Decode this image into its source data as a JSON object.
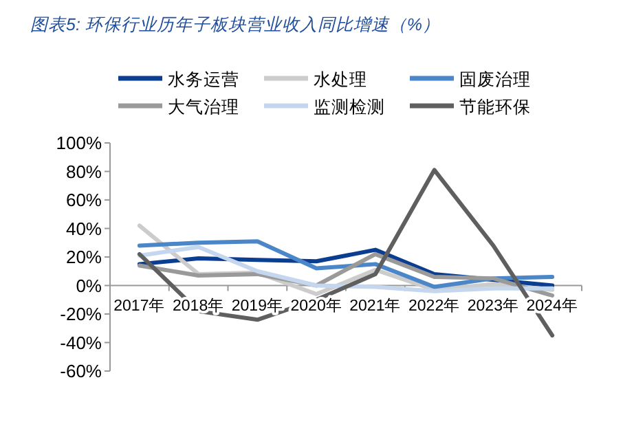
{
  "chart_data": {
    "type": "line",
    "title": "图表5:  环保行业历年子板块营业收入同比增速（%）",
    "categories": [
      "2017年",
      "2018年",
      "2019年",
      "2020年",
      "2021年",
      "2022年",
      "2023年",
      "2024年"
    ],
    "series": [
      {
        "name": "水务运营",
        "color": "#0b3d91",
        "values": [
          15,
          19,
          18,
          17,
          25,
          8,
          4,
          0
        ]
      },
      {
        "name": "水处理",
        "color": "#cccccc",
        "values": [
          42,
          8,
          9,
          -6,
          11,
          -3,
          1,
          -3
        ]
      },
      {
        "name": "固废治理",
        "color": "#4a86c8",
        "values": [
          28,
          30,
          31,
          12,
          15,
          -1,
          5,
          6
        ]
      },
      {
        "name": "大气治理",
        "color": "#9a9a9a",
        "values": [
          14,
          7,
          8,
          0,
          22,
          6,
          5,
          -7
        ]
      },
      {
        "name": "监测检测",
        "color": "#c5d7ee",
        "values": [
          21,
          27,
          10,
          0,
          -1,
          -4,
          -2,
          -2
        ]
      },
      {
        "name": "节能环保",
        "color": "#5f5f5f",
        "values": [
          22,
          -18,
          -24,
          -10,
          8,
          81,
          28,
          -35
        ]
      }
    ],
    "ylim": [
      -60,
      100
    ],
    "yticks": [
      {
        "value": -60,
        "label": "-60%"
      },
      {
        "value": -40,
        "label": "-40%"
      },
      {
        "value": -20,
        "label": "-20%"
      },
      {
        "value": 0,
        "label": "0%"
      },
      {
        "value": 20,
        "label": "20%"
      },
      {
        "value": 40,
        "label": "40%"
      },
      {
        "value": 60,
        "label": "60%"
      },
      {
        "value": 80,
        "label": "80%"
      },
      {
        "value": 100,
        "label": "100%"
      }
    ],
    "legend": "top"
  }
}
